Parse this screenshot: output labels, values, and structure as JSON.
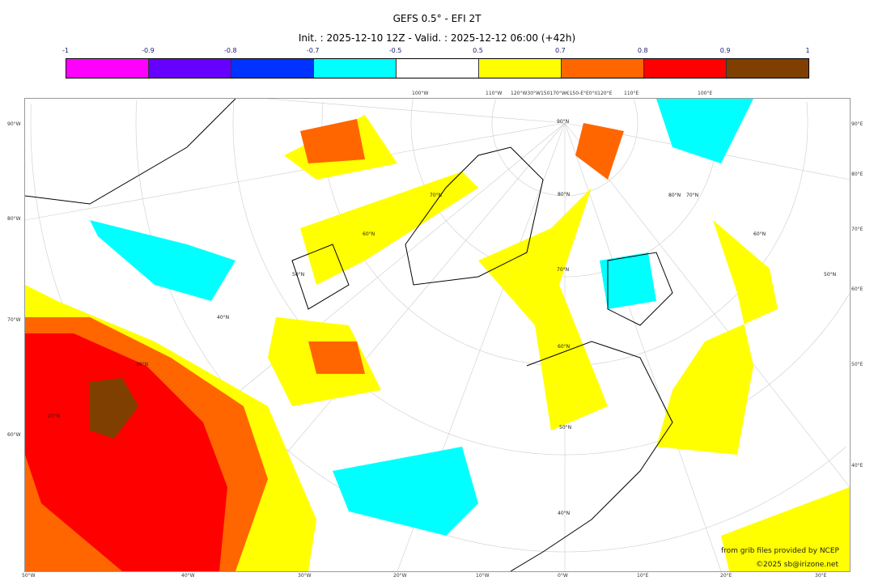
{
  "header": {
    "title": "GEFS 0.5° - EFI 2T",
    "subtitle": "Init. : 2025-12-10 12Z - Valid. : 2025-12-12 06:00 (+42h)"
  },
  "colorbar": {
    "ticks": [
      "-1",
      "-0.9",
      "-0.8",
      "-0.7",
      "-0.5",
      "0.5",
      "0.7",
      "0.8",
      "0.9",
      "1"
    ],
    "colors": [
      "#ff00ff",
      "#6600ff",
      "#0033ff",
      "#00ffff",
      "#ffffff",
      "#ffff00",
      "#ff6600",
      "#ff0000",
      "#7f3f00"
    ]
  },
  "axes": {
    "top": [
      "100°W",
      "110°W",
      "120°W30°W150170°W€150-E°E0°II120°E",
      "110°E",
      "100°E"
    ],
    "left": [
      "90°W",
      "80°W",
      "70°W",
      "60°W"
    ],
    "right": [
      "90°E",
      "80°E",
      "70°E",
      "60°E",
      "50°E",
      "40°E"
    ],
    "bottom": [
      "50°W",
      "40°W",
      "30°W",
      "20°W",
      "10°W",
      "0°W",
      "10°E",
      "20°E",
      "30°E"
    ],
    "lat_labels": [
      "90°N",
      "80°N",
      "80°N",
      "70°N",
      "70°N",
      "70°N",
      "60°N",
      "60°N",
      "60°N",
      "50°N",
      "50°N",
      "50°N",
      "40°N",
      "40°N",
      "30°N",
      "20°N"
    ]
  },
  "credits": [
    "from grib files provided by NCEP",
    "©2025 sb@irizone.net"
  ]
}
